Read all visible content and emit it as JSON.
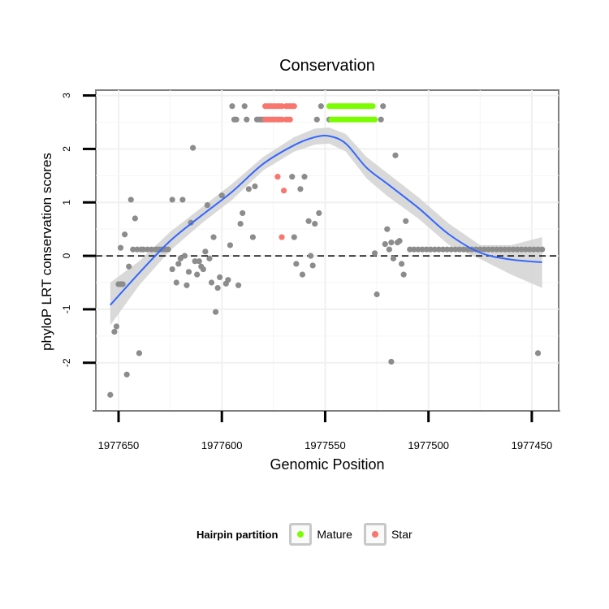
{
  "chart_data": {
    "type": "scatter",
    "title": "Conservation",
    "xlabel": "Genomic Position",
    "ylabel": "phyloP LRT conservation scores",
    "x_reversed": true,
    "xlim": [
      1977661,
      1977437
    ],
    "ylim": [
      -2.9,
      3.1
    ],
    "x_ticks": [
      1977650,
      1977600,
      1977550,
      1977500,
      1977450
    ],
    "x_tick_labels": [
      "1977650",
      "1977600",
      "1977550",
      "1977500",
      "1977450"
    ],
    "y_ticks": [
      -2,
      -1,
      0,
      1,
      2,
      3
    ],
    "y_tick_labels": [
      "-2",
      "-1",
      "0",
      "1",
      "2",
      "3"
    ],
    "reference_line": {
      "y": 0,
      "style": "dashed"
    },
    "legend": {
      "title": "Hairpin partition",
      "position": "bottom",
      "entries": [
        {
          "label": "Mature",
          "color": "#7CFC00"
        },
        {
          "label": "Star",
          "color": "#F8766D"
        }
      ]
    },
    "colors": {
      "other": "#8c8c8c",
      "mature": "#7CFC00",
      "star": "#F8766D",
      "smooth": "#3366FF",
      "band": "#d2d2d2"
    },
    "series": [
      {
        "name": "Other",
        "points": [
          [
            1977654,
            -2.6
          ],
          [
            1977652,
            -1.42
          ],
          [
            1977651,
            -1.32
          ],
          [
            1977650,
            -0.53
          ],
          [
            1977649,
            -0.53
          ],
          [
            1977649,
            0.15
          ],
          [
            1977648,
            -0.53
          ],
          [
            1977647,
            0.4
          ],
          [
            1977646,
            -2.22
          ],
          [
            1977645,
            -0.2
          ],
          [
            1977644,
            1.05
          ],
          [
            1977643,
            0.12
          ],
          [
            1977642,
            0.7
          ],
          [
            1977641,
            0.12
          ],
          [
            1977640,
            -1.82
          ],
          [
            1977639,
            0.12
          ],
          [
            1977638,
            0.12
          ],
          [
            1977636,
            0.12
          ],
          [
            1977634,
            0.12
          ],
          [
            1977632,
            0.12
          ],
          [
            1977631,
            0.12
          ],
          [
            1977630,
            0.12
          ],
          [
            1977629,
            0.12
          ],
          [
            1977628,
            0.12
          ],
          [
            1977627,
            0.12
          ],
          [
            1977626,
            0.12
          ],
          [
            1977624,
            1.05
          ],
          [
            1977624,
            -0.25
          ],
          [
            1977622,
            -0.5
          ],
          [
            1977621,
            -0.15
          ],
          [
            1977620,
            -0.05
          ],
          [
            1977619,
            1.05
          ],
          [
            1977618,
            0.0
          ],
          [
            1977617,
            -0.55
          ],
          [
            1977616,
            -0.3
          ],
          [
            1977615,
            0.62
          ],
          [
            1977614,
            2.02
          ],
          [
            1977613,
            -0.1
          ],
          [
            1977612,
            -0.35
          ],
          [
            1977611,
            -0.1
          ],
          [
            1977610,
            -0.2
          ],
          [
            1977609,
            -0.25
          ],
          [
            1977608,
            0.08
          ],
          [
            1977607,
            0.95
          ],
          [
            1977606,
            -0.05
          ],
          [
            1977605,
            -0.5
          ],
          [
            1977604,
            0.35
          ],
          [
            1977603,
            -1.05
          ],
          [
            1977602,
            -0.6
          ],
          [
            1977601,
            -0.4
          ],
          [
            1977600,
            1.13
          ],
          [
            1977598,
            -0.52
          ],
          [
            1977597,
            -0.45
          ],
          [
            1977596,
            0.2
          ],
          [
            1977595,
            2.8
          ],
          [
            1977594,
            2.55
          ],
          [
            1977593,
            2.55
          ],
          [
            1977592,
            -0.55
          ],
          [
            1977591,
            0.6
          ],
          [
            1977590,
            0.8
          ],
          [
            1977589,
            2.8
          ],
          [
            1977588,
            2.55
          ],
          [
            1977587,
            1.25
          ],
          [
            1977585,
            0.35
          ],
          [
            1977584,
            1.3
          ],
          [
            1977583,
            2.55
          ],
          [
            1977582,
            2.55
          ],
          [
            1977581,
            2.55
          ],
          [
            1977580,
            2.55
          ],
          [
            1977566,
            1.48
          ],
          [
            1977565,
            0.35
          ],
          [
            1977564,
            -0.15
          ],
          [
            1977562,
            1.25
          ],
          [
            1977561,
            -0.35
          ],
          [
            1977560,
            1.48
          ],
          [
            1977558,
            0.65
          ],
          [
            1977557,
            0.0
          ],
          [
            1977556,
            -0.18
          ],
          [
            1977555,
            0.6
          ],
          [
            1977554,
            2.55
          ],
          [
            1977553,
            0.8
          ],
          [
            1977552,
            2.8
          ],
          [
            1977548,
            2.55
          ],
          [
            1977526,
            0.05
          ],
          [
            1977525,
            -0.72
          ],
          [
            1977523,
            2.55
          ],
          [
            1977522,
            2.8
          ],
          [
            1977521,
            0.22
          ],
          [
            1977520,
            0.5
          ],
          [
            1977519,
            0.12
          ],
          [
            1977518,
            0.25
          ],
          [
            1977517,
            -0.05
          ],
          [
            1977516,
            1.88
          ],
          [
            1977515,
            0.25
          ],
          [
            1977514,
            0.28
          ],
          [
            1977513,
            -0.15
          ],
          [
            1977512,
            -0.35
          ],
          [
            1977511,
            0.65
          ],
          [
            1977509,
            0.12
          ],
          [
            1977507,
            0.12
          ],
          [
            1977505,
            0.12
          ],
          [
            1977503,
            0.12
          ],
          [
            1977501,
            0.12
          ],
          [
            1977499,
            0.12
          ],
          [
            1977497,
            0.12
          ],
          [
            1977495,
            0.12
          ],
          [
            1977493,
            0.12
          ],
          [
            1977491,
            0.12
          ],
          [
            1977489,
            0.12
          ],
          [
            1977487,
            0.12
          ],
          [
            1977485,
            0.12
          ],
          [
            1977483,
            0.12
          ],
          [
            1977481,
            0.12
          ],
          [
            1977479,
            0.12
          ],
          [
            1977477,
            0.12
          ],
          [
            1977475,
            0.12
          ],
          [
            1977473,
            0.12
          ],
          [
            1977471,
            0.12
          ],
          [
            1977469,
            0.12
          ],
          [
            1977467,
            0.12
          ],
          [
            1977465,
            0.12
          ],
          [
            1977463,
            0.12
          ],
          [
            1977461,
            0.12
          ],
          [
            1977459,
            0.12
          ],
          [
            1977457,
            0.12
          ],
          [
            1977455,
            0.12
          ],
          [
            1977453,
            0.12
          ],
          [
            1977451,
            0.12
          ],
          [
            1977449,
            0.12
          ],
          [
            1977447,
            0.12
          ],
          [
            1977445,
            0.12
          ],
          [
            1977518,
            -1.98
          ],
          [
            1977447,
            -1.82
          ]
        ]
      },
      {
        "name": "Star",
        "points": [
          [
            1977579,
            2.8
          ],
          [
            1977578,
            2.8
          ],
          [
            1977577,
            2.8
          ],
          [
            1977576,
            2.8
          ],
          [
            1977575,
            2.8
          ],
          [
            1977574,
            2.8
          ],
          [
            1977573,
            2.8
          ],
          [
            1977572,
            2.8
          ],
          [
            1977571,
            2.8
          ],
          [
            1977569,
            2.8
          ],
          [
            1977568,
            2.8
          ],
          [
            1977567,
            2.8
          ],
          [
            1977566,
            2.8
          ],
          [
            1977565,
            2.8
          ],
          [
            1977579,
            2.55
          ],
          [
            1977578,
            2.55
          ],
          [
            1977577,
            2.55
          ],
          [
            1977576,
            2.55
          ],
          [
            1977575,
            2.55
          ],
          [
            1977574,
            2.55
          ],
          [
            1977573,
            2.55
          ],
          [
            1977572,
            2.55
          ],
          [
            1977571,
            2.55
          ],
          [
            1977569,
            2.55
          ],
          [
            1977568,
            2.55
          ],
          [
            1977567,
            2.55
          ],
          [
            1977573,
            1.48
          ],
          [
            1977570,
            1.22
          ],
          [
            1977571,
            0.35
          ]
        ]
      },
      {
        "name": "Mature",
        "points": [
          [
            1977548,
            2.8
          ],
          [
            1977547,
            2.8
          ],
          [
            1977546,
            2.8
          ],
          [
            1977545,
            2.8
          ],
          [
            1977544,
            2.8
          ],
          [
            1977543,
            2.8
          ],
          [
            1977542,
            2.8
          ],
          [
            1977541,
            2.8
          ],
          [
            1977540,
            2.8
          ],
          [
            1977539,
            2.8
          ],
          [
            1977538,
            2.8
          ],
          [
            1977537,
            2.8
          ],
          [
            1977536,
            2.8
          ],
          [
            1977535,
            2.8
          ],
          [
            1977534,
            2.8
          ],
          [
            1977533,
            2.8
          ],
          [
            1977532,
            2.8
          ],
          [
            1977531,
            2.8
          ],
          [
            1977530,
            2.8
          ],
          [
            1977529,
            2.8
          ],
          [
            1977528,
            2.8
          ],
          [
            1977527,
            2.8
          ],
          [
            1977547,
            2.55
          ],
          [
            1977546,
            2.55
          ],
          [
            1977545,
            2.55
          ],
          [
            1977544,
            2.55
          ],
          [
            1977543,
            2.55
          ],
          [
            1977542,
            2.55
          ],
          [
            1977541,
            2.55
          ],
          [
            1977540,
            2.55
          ],
          [
            1977539,
            2.55
          ],
          [
            1977538,
            2.55
          ],
          [
            1977537,
            2.55
          ],
          [
            1977536,
            2.55
          ],
          [
            1977535,
            2.55
          ],
          [
            1977534,
            2.55
          ],
          [
            1977533,
            2.55
          ],
          [
            1977532,
            2.55
          ],
          [
            1977531,
            2.55
          ],
          [
            1977530,
            2.55
          ],
          [
            1977529,
            2.55
          ],
          [
            1977528,
            2.55
          ],
          [
            1977527,
            2.55
          ],
          [
            1977526,
            2.55
          ]
        ]
      }
    ],
    "smooth": {
      "x": [
        1977654,
        1977640,
        1977625,
        1977610,
        1977595,
        1977580,
        1977565,
        1977555,
        1977548,
        1977540,
        1977530,
        1977520,
        1977505,
        1977490,
        1977475,
        1977460,
        1977445
      ],
      "y": [
        -0.92,
        -0.32,
        0.28,
        0.75,
        1.2,
        1.72,
        2.07,
        2.22,
        2.24,
        2.1,
        1.65,
        1.35,
        0.9,
        0.4,
        0.06,
        -0.07,
        -0.12
      ],
      "lower": [
        -1.3,
        -0.55,
        0.1,
        0.6,
        1.05,
        1.6,
        1.95,
        2.08,
        2.1,
        1.95,
        1.45,
        1.12,
        0.7,
        0.2,
        -0.06,
        -0.35,
        -0.6
      ],
      "upper": [
        -0.5,
        -0.1,
        0.45,
        0.9,
        1.35,
        1.85,
        2.22,
        2.38,
        2.4,
        2.28,
        1.85,
        1.55,
        1.1,
        0.6,
        0.2,
        0.2,
        0.35
      ]
    }
  }
}
